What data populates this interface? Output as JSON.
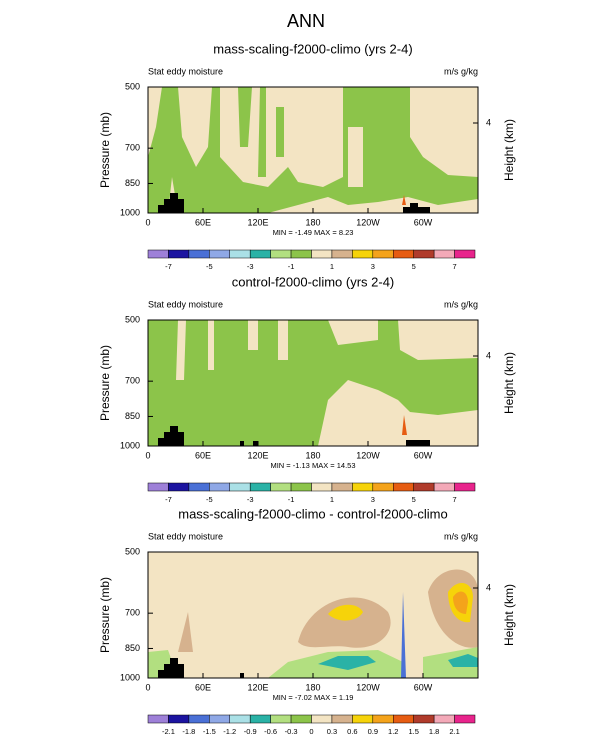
{
  "title": "ANN",
  "chart_data": [
    {
      "type": "contour",
      "title": "mass-scaling-f2000-climo (yrs 2-4)",
      "left_label": "Stat eddy moisture",
      "right_label": "m/s g/kg",
      "ylabel": "Pressure (mb)",
      "y2label": "Height (km)",
      "min_max": "MIN = -1.49  MAX =  8.23",
      "xlim": [
        0,
        360
      ],
      "xticks": [
        0,
        {
          "value": 60,
          "label": "60E"
        },
        {
          "value": 120,
          "label": "120E"
        },
        180,
        {
          "value": 240,
          "label": "120W"
        },
        {
          "value": 300,
          "label": "60W"
        }
      ],
      "ylim": [
        1000,
        500
      ],
      "ylog": true,
      "yticks": [
        500,
        700,
        850,
        1000
      ],
      "y2lim": [
        0,
        5.6
      ],
      "y2ticks": [
        4
      ],
      "levels": [
        -7,
        -6,
        -5,
        -4,
        -3,
        -2,
        -1,
        0,
        1,
        2,
        3,
        4,
        5,
        6,
        7
      ],
      "colorbar_ticks": [
        -7,
        -5,
        -3,
        -1,
        1,
        3,
        5,
        7
      ],
      "colors": [
        "#9e80d8",
        "#1c14a0",
        "#4a70d6",
        "#8fa8e6",
        "#aae0e6",
        "#2ab2a6",
        "#b2df80",
        "#8cc44a",
        "#f3e4c3",
        "#d6b28e",
        "#f6d30a",
        "#f4a31b",
        "#e65c12",
        "#b03b2b",
        "#f3a9b8",
        "#e8248c"
      ]
    },
    {
      "type": "contour",
      "title": "control-f2000-climo (yrs 2-4)",
      "left_label": "Stat eddy moisture",
      "right_label": "m/s g/kg",
      "ylabel": "Pressure (mb)",
      "y2label": "Height (km)",
      "min_max": "MIN = -1.13  MAX = 14.53",
      "xlim": [
        0,
        360
      ],
      "xticks": [
        0,
        {
          "value": 60,
          "label": "60E"
        },
        {
          "value": 120,
          "label": "120E"
        },
        180,
        {
          "value": 240,
          "label": "120W"
        },
        {
          "value": 300,
          "label": "60W"
        }
      ],
      "ylim": [
        1000,
        500
      ],
      "ylog": true,
      "yticks": [
        500,
        700,
        850,
        1000
      ],
      "y2lim": [
        0,
        5.6
      ],
      "y2ticks": [
        4
      ],
      "levels": [
        -7,
        -6,
        -5,
        -4,
        -3,
        -2,
        -1,
        0,
        1,
        2,
        3,
        4,
        5,
        6,
        7
      ],
      "colorbar_ticks": [
        -7,
        -5,
        -3,
        -1,
        1,
        3,
        5,
        7
      ],
      "colors": [
        "#9e80d8",
        "#1c14a0",
        "#4a70d6",
        "#8fa8e6",
        "#aae0e6",
        "#2ab2a6",
        "#b2df80",
        "#8cc44a",
        "#f3e4c3",
        "#d6b28e",
        "#f6d30a",
        "#f4a31b",
        "#e65c12",
        "#b03b2b",
        "#f3a9b8",
        "#e8248c"
      ]
    },
    {
      "type": "contour",
      "title": "mass-scaling-f2000-climo - control-f2000-climo",
      "left_label": "Stat eddy moisture",
      "right_label": "m/s g/kg",
      "ylabel": "Pressure (mb)",
      "y2label": "Height (km)",
      "min_max": "MIN = -7.02  MAX =  1.19",
      "xlim": [
        0,
        360
      ],
      "xticks": [
        0,
        {
          "value": 60,
          "label": "60E"
        },
        {
          "value": 120,
          "label": "120E"
        },
        180,
        {
          "value": 240,
          "label": "120W"
        },
        {
          "value": 300,
          "label": "60W"
        }
      ],
      "ylim": [
        1000,
        500
      ],
      "ylog": true,
      "yticks": [
        500,
        700,
        850,
        1000
      ],
      "y2lim": [
        0,
        5.6
      ],
      "y2ticks": [
        4
      ],
      "levels": [
        -2.1,
        -1.8,
        -1.5,
        -1.2,
        -0.9,
        -0.6,
        -0.3,
        0,
        0.3,
        0.6,
        0.9,
        1.2,
        1.5,
        1.8,
        2.1
      ],
      "colorbar_ticks": [
        -2.1,
        -1.8,
        -1.5,
        -1.2,
        -0.9,
        -0.6,
        -0.3,
        0,
        0.3,
        0.6,
        0.9,
        1.2,
        1.5,
        1.8,
        2.1
      ],
      "colors": [
        "#9e80d8",
        "#1c14a0",
        "#4a70d6",
        "#8fa8e6",
        "#aae0e6",
        "#2ab2a6",
        "#b2df80",
        "#8cc44a",
        "#f3e4c3",
        "#d6b28e",
        "#f6d30a",
        "#f4a31b",
        "#e65c12",
        "#b03b2b",
        "#f3a9b8",
        "#e8248c"
      ]
    }
  ]
}
